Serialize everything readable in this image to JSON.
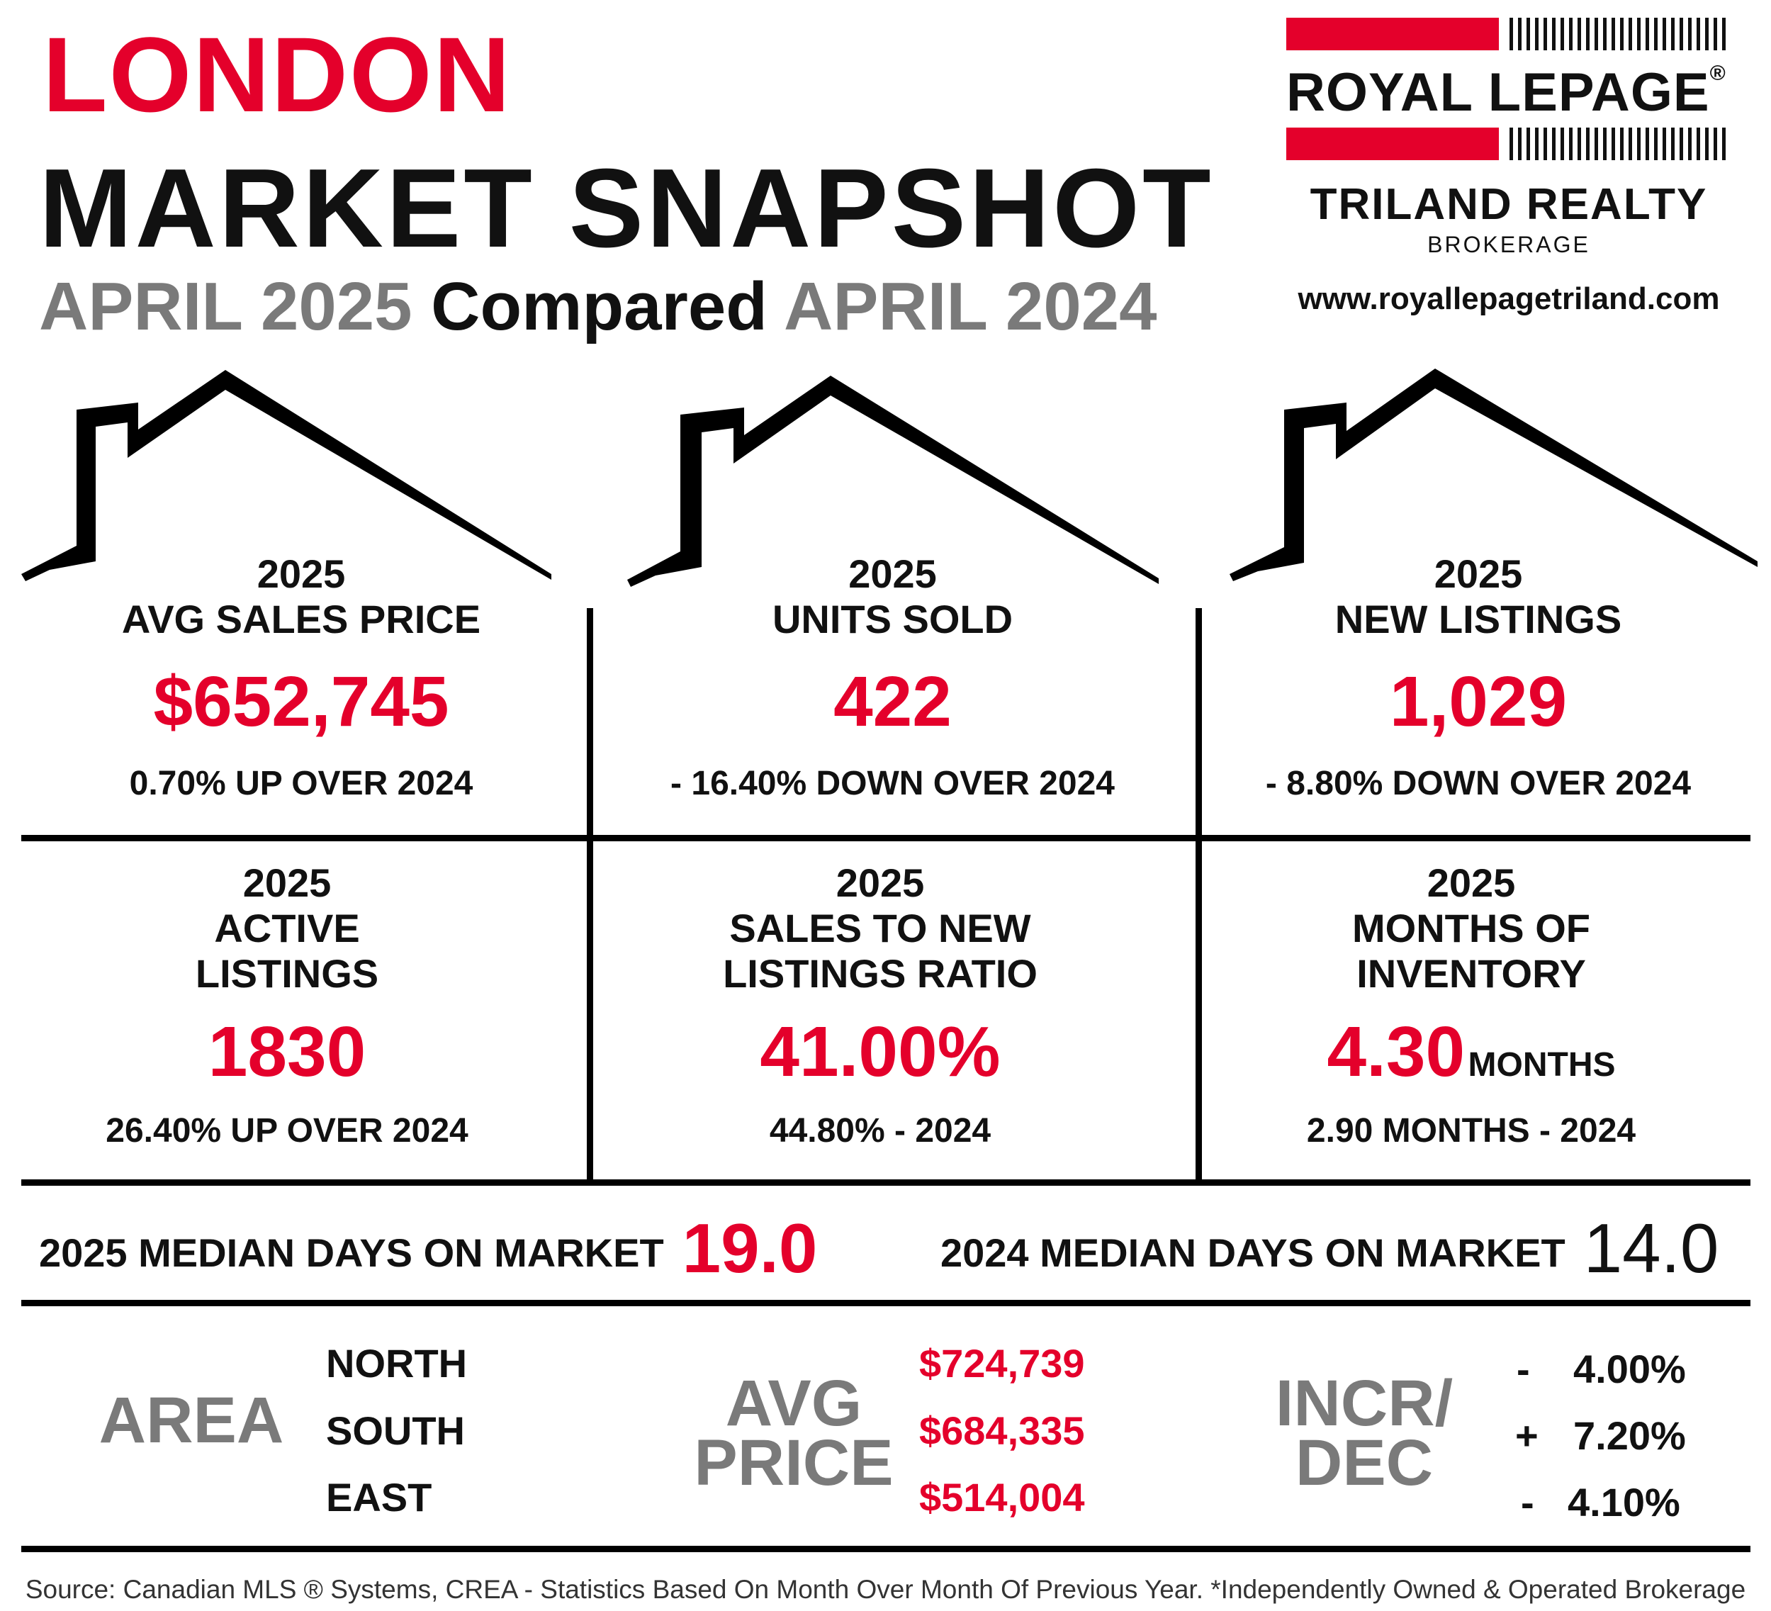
{
  "header": {
    "city": "LONDON",
    "title": "MARKET SNAPSHOT",
    "period_current": "APRIL 2025",
    "compared_word": "Compared",
    "period_previous": "APRIL 2024"
  },
  "logo": {
    "name": "ROYAL LEPAGE",
    "registered": "®",
    "office": "TRILAND REALTY",
    "brokerage": "BROKERAGE",
    "url": "www.royallepagetriland.com"
  },
  "stats": [
    {
      "year": "2025",
      "label_lines": [
        "AVG SALES PRICE"
      ],
      "value": "$652,745",
      "unit": "",
      "comparison": "0.70% UP OVER 2024"
    },
    {
      "year": "2025",
      "label_lines": [
        "UNITS SOLD"
      ],
      "value": "422",
      "unit": "",
      "comparison": "- 16.40% DOWN OVER 2024"
    },
    {
      "year": "2025",
      "label_lines": [
        "NEW LISTINGS"
      ],
      "value": "1,029",
      "unit": "",
      "comparison": "- 8.80% DOWN OVER 2024"
    },
    {
      "year": "2025",
      "label_lines": [
        "ACTIVE",
        "LISTINGS"
      ],
      "value": "1830",
      "unit": "",
      "comparison": "26.40% UP OVER 2024"
    },
    {
      "year": "2025",
      "label_lines": [
        "SALES TO NEW",
        "LISTINGS RATIO"
      ],
      "value": "41.00%",
      "unit": "",
      "comparison": "44.80% - 2024"
    },
    {
      "year": "2025",
      "label_lines": [
        "MONTHS OF",
        "INVENTORY"
      ],
      "value": "4.30",
      "unit": "MONTHS",
      "comparison": "2.90 MONTHS - 2024"
    }
  ],
  "median_dom": {
    "current_label": "2025 MEDIAN DAYS ON MARKET",
    "current_value": "19.0",
    "previous_label": "2024 MEDIAN DAYS ON MARKET",
    "previous_value": "14.0"
  },
  "areas": {
    "area_heading": "AREA",
    "price_heading_lines": [
      "AVG",
      "PRICE"
    ],
    "change_heading_lines": [
      "INCR/",
      "DEC"
    ],
    "rows": [
      {
        "area": "NORTH",
        "price": "$724,739",
        "sign": "-",
        "change": "4.00%"
      },
      {
        "area": "SOUTH",
        "price": "$684,335",
        "sign": "+",
        "change": "7.20%"
      },
      {
        "area": "EAST",
        "price": "$514,004",
        "sign": "-",
        "change": "4.10%"
      }
    ]
  },
  "footer": "Source: Canadian MLS ® Systems, CREA - Statistics Based On Month Over Month Of Previous Year.  *Independently Owned & Operated Brokerage",
  "colors": {
    "accent": "#e4002b",
    "muted": "#7a7a7a",
    "text": "#111111"
  }
}
